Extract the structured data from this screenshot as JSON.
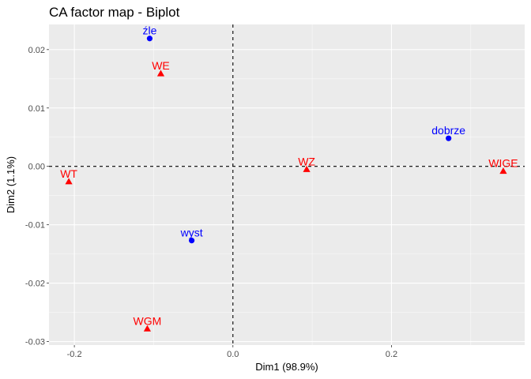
{
  "chart_data": {
    "type": "scatter",
    "title": "CA factor map - Biplot",
    "xlabel": "Dim1 (98.9%)",
    "ylabel": "Dim2 (1.1%)",
    "xlim": [
      -0.232,
      0.368
    ],
    "ylim": [
      -0.0306,
      0.0243
    ],
    "x_ticks": [
      -0.2,
      0.0,
      0.2
    ],
    "x_tick_labels": [
      "-0.2",
      "0.0",
      "0.2"
    ],
    "y_ticks": [
      -0.03,
      -0.02,
      -0.01,
      0.0,
      0.01,
      0.02
    ],
    "y_tick_labels": [
      "-0.03",
      "-0.02",
      "-0.01",
      "0.00",
      "0.01",
      "0.02"
    ],
    "grid": true,
    "reference_lines": {
      "x": 0,
      "y": 0,
      "style": "dashed"
    },
    "series": [
      {
        "marker": "circle",
        "color": "#0000FF",
        "points": [
          {
            "label": "źle",
            "x": -0.105,
            "y": 0.0219
          },
          {
            "label": "dobrze",
            "x": 0.272,
            "y": 0.0048
          },
          {
            "label": "wyst",
            "x": -0.052,
            "y": -0.0127
          }
        ]
      },
      {
        "marker": "triangle",
        "color": "#FF0000",
        "points": [
          {
            "label": "WE",
            "x": -0.091,
            "y": 0.0159
          },
          {
            "label": "WT",
            "x": -0.207,
            "y": -0.0026
          },
          {
            "label": "WZ",
            "x": 0.093,
            "y": -0.0005
          },
          {
            "label": "WIGE",
            "x": 0.341,
            "y": -0.0008
          },
          {
            "label": "WGM",
            "x": -0.108,
            "y": -0.0278
          }
        ]
      }
    ]
  }
}
